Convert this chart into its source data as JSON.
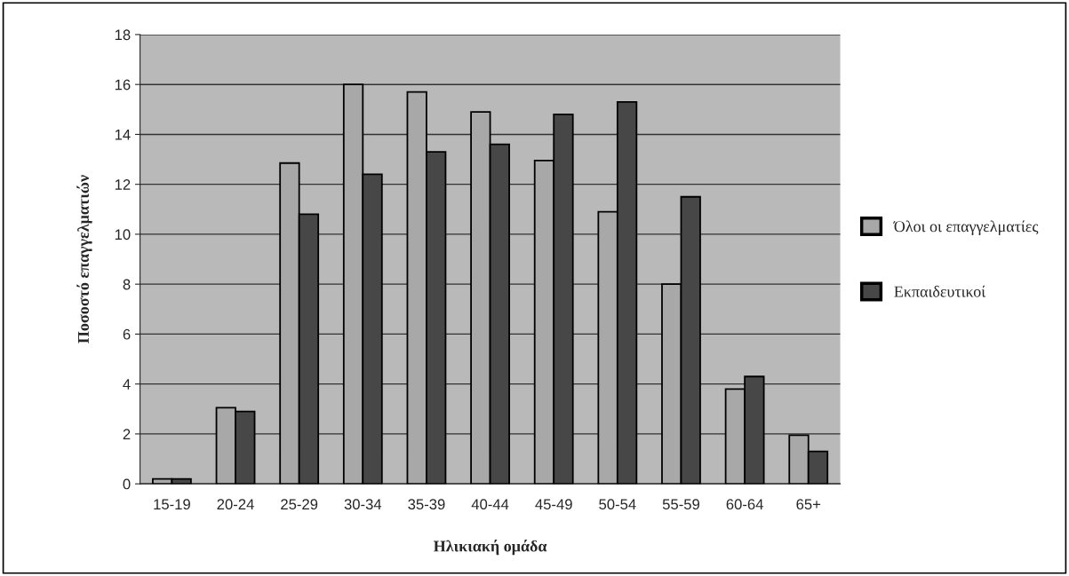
{
  "chart_data": {
    "type": "bar",
    "xlabel": "Ηλικιακή ομάδα",
    "ylabel": "Ποσοστό επαγγελματιών",
    "categories": [
      "15-19",
      "20-24",
      "25-29",
      "30-34",
      "35-39",
      "40-44",
      "45-49",
      "50-54",
      "55-59",
      "60-64",
      "65+"
    ],
    "series": [
      {
        "name": "Όλοι οι επαγγελματίες",
        "color": "#a8a8a8",
        "values": [
          0.2,
          3.05,
          12.85,
          16.0,
          15.7,
          14.9,
          12.95,
          10.9,
          8.0,
          3.8,
          1.95
        ]
      },
      {
        "name": "Εκπαιδευτικοί",
        "color": "#474747",
        "values": [
          0.2,
          2.9,
          10.8,
          12.4,
          13.3,
          13.6,
          14.8,
          15.3,
          11.5,
          4.3,
          1.3
        ]
      }
    ],
    "ylim": [
      0,
      18
    ],
    "yticks": [
      0,
      2,
      4,
      6,
      8,
      10,
      12,
      14,
      16,
      18
    ],
    "grid": "y",
    "legend": "right"
  }
}
